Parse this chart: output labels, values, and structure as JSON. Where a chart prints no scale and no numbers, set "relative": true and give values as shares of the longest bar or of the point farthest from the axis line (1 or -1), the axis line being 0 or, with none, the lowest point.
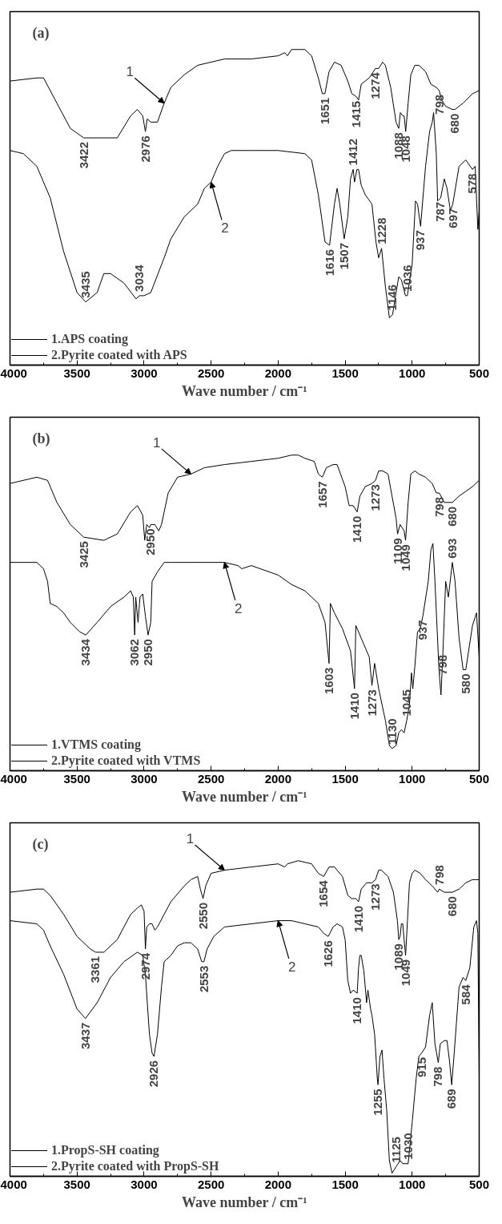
{
  "chart_data": [
    {
      "type": "line",
      "title": "(a)",
      "xlabel": "Wave number / cm⁻¹",
      "relative": true,
      "xlim": [
        4000,
        500
      ],
      "xticks": [
        4000,
        3500,
        3000,
        2500,
        2000,
        1500,
        1000,
        500
      ],
      "legend": "bottom left",
      "grid": false,
      "series": [
        {
          "name": "1.APS coating",
          "color": "#000000",
          "x": [
            4000,
            3800,
            3750,
            3650,
            3550,
            3450,
            3300,
            3200,
            3100,
            3050,
            3010,
            2990,
            2976,
            2950,
            2900,
            2850,
            2800,
            2700,
            2600,
            2400,
            2200,
            2000,
            1950,
            1930,
            1900,
            1800,
            1750,
            1700,
            1670,
            1651,
            1620,
            1580,
            1530,
            1480,
            1450,
            1415,
            1400,
            1380,
            1350,
            1320,
            1274,
            1250,
            1220,
            1200,
            1160,
            1120,
            1100,
            1088,
            1070,
            1060,
            1048,
            1030,
            1010,
            980,
            950,
            900,
            860,
            820,
            798,
            780,
            750,
            700,
            680,
            620,
            550,
            500
          ],
          "values": [
            0.9,
            0.91,
            0.91,
            0.83,
            0.75,
            0.72,
            0.72,
            0.72,
            0.79,
            0.81,
            0.79,
            0.74,
            0.78,
            0.77,
            0.77,
            0.83,
            0.88,
            0.92,
            0.95,
            0.97,
            0.97,
            0.98,
            0.99,
            0.98,
            1.0,
            1.0,
            0.98,
            0.91,
            0.86,
            0.86,
            0.93,
            0.96,
            0.95,
            0.9,
            0.86,
            0.85,
            0.84,
            0.89,
            0.9,
            0.91,
            0.94,
            0.94,
            0.96,
            0.95,
            0.88,
            0.77,
            0.75,
            0.8,
            0.79,
            0.79,
            0.74,
            0.83,
            0.92,
            0.95,
            0.95,
            0.93,
            0.89,
            0.88,
            0.87,
            0.84,
            0.82,
            0.81,
            0.81,
            0.83,
            0.86,
            0.87
          ]
        },
        {
          "name": "2.Pyrite coated with APS",
          "color": "#000000",
          "x": [
            4000,
            3900,
            3800,
            3700,
            3600,
            3500,
            3435,
            3350,
            3300,
            3250,
            3150,
            3060,
            3034,
            3000,
            2950,
            2850,
            2800,
            2700,
            2600,
            2550,
            2500,
            2450,
            2400,
            2350,
            2200,
            2000,
            1800,
            1750,
            1700,
            1650,
            1616,
            1580,
            1560,
            1540,
            1507,
            1480,
            1460,
            1440,
            1430,
            1412,
            1400,
            1380,
            1350,
            1300,
            1270,
            1250,
            1228,
            1200,
            1170,
            1146,
            1120,
            1100,
            1080,
            1050,
            1036,
            1000,
            975,
            960,
            937,
            900,
            870,
            850,
            840,
            820,
            810,
            787,
            760,
            740,
            715,
            697,
            650,
            600,
            550,
            530,
            510,
            500
          ],
          "values": [
            0.68,
            0.67,
            0.63,
            0.53,
            0.36,
            0.23,
            0.2,
            0.23,
            0.29,
            0.29,
            0.26,
            0.21,
            0.22,
            0.22,
            0.23,
            0.34,
            0.4,
            0.47,
            0.51,
            0.56,
            0.58,
            0.63,
            0.67,
            0.68,
            0.68,
            0.68,
            0.67,
            0.65,
            0.54,
            0.39,
            0.38,
            0.51,
            0.56,
            0.51,
            0.4,
            0.47,
            0.59,
            0.62,
            0.58,
            0.62,
            0.62,
            0.57,
            0.54,
            0.51,
            0.39,
            0.34,
            0.37,
            0.25,
            0.15,
            0.16,
            0.23,
            0.28,
            0.27,
            0.22,
            0.22,
            0.32,
            0.52,
            0.51,
            0.44,
            0.63,
            0.74,
            0.77,
            0.8,
            0.67,
            0.52,
            0.53,
            0.59,
            0.56,
            0.49,
            0.51,
            0.63,
            0.65,
            0.62,
            0.63,
            0.43,
            0.49
          ]
        }
      ],
      "annotations": [
        {
          "text": "1",
          "x": 2850,
          "y": 0.83
        },
        {
          "text": "2",
          "x": 2500,
          "y": 0.58
        },
        {
          "text": "3422",
          "x": 3450,
          "y": 0.72
        },
        {
          "text": "2976",
          "x": 2990,
          "y": 0.74
        },
        {
          "text": "1651",
          "x": 1651,
          "y": 0.86
        },
        {
          "text": "1415",
          "x": 1415,
          "y": 0.85
        },
        {
          "text": "1274",
          "x": 1274,
          "y": 0.94
        },
        {
          "text": "1088",
          "x": 1100,
          "y": 0.75
        },
        {
          "text": "1048",
          "x": 1048,
          "y": 0.74
        },
        {
          "text": "798",
          "x": 798,
          "y": 0.87
        },
        {
          "text": "680",
          "x": 680,
          "y": 0.81
        },
        {
          "text": "3435",
          "x": 3435,
          "y": 0.2
        },
        {
          "text": "3034",
          "x": 3034,
          "y": 0.22
        },
        {
          "text": "1616",
          "x": 1616,
          "y": 0.38
        },
        {
          "text": "1507",
          "x": 1507,
          "y": 0.4
        },
        {
          "text": "1412",
          "x": 1440,
          "y": 0.62
        },
        {
          "text": "1228",
          "x": 1228,
          "y": 0.37
        },
        {
          "text": "1146",
          "x": 1146,
          "y": 0.16
        },
        {
          "text": "1036",
          "x": 1036,
          "y": 0.22
        },
        {
          "text": "937",
          "x": 937,
          "y": 0.44
        },
        {
          "text": "787",
          "x": 787,
          "y": 0.53
        },
        {
          "text": "697",
          "x": 697,
          "y": 0.51
        },
        {
          "text": "578",
          "x": 550,
          "y": 0.62
        }
      ]
    },
    {
      "type": "line",
      "title": "(b)",
      "xlabel": "Wave number / cm⁻¹",
      "relative": true,
      "xlim": [
        4000,
        500
      ],
      "xticks": [
        4000,
        3500,
        3000,
        2500,
        2000,
        1500,
        1000,
        500
      ],
      "legend": "bottom left",
      "grid": false,
      "series": [
        {
          "name": "1.VTMS coating",
          "color": "#000000",
          "x": [
            4000,
            3800,
            3720,
            3650,
            3550,
            3450,
            3300,
            3200,
            3100,
            3050,
            3010,
            2995,
            2980,
            2960,
            2950,
            2920,
            2890,
            2870,
            2820,
            2750,
            2650,
            2550,
            2400,
            2200,
            2000,
            1900,
            1850,
            1800,
            1730,
            1700,
            1670,
            1640,
            1590,
            1560,
            1500,
            1470,
            1440,
            1410,
            1390,
            1350,
            1300,
            1273,
            1250,
            1220,
            1180,
            1150,
            1120,
            1109,
            1090,
            1075,
            1060,
            1049,
            1030,
            1010,
            980,
            950,
            900,
            850,
            820,
            798,
            760,
            700,
            650,
            550,
            500
          ],
          "values": [
            0.91,
            0.93,
            0.92,
            0.85,
            0.78,
            0.74,
            0.73,
            0.75,
            0.82,
            0.84,
            0.81,
            0.73,
            0.78,
            0.77,
            0.78,
            0.78,
            0.76,
            0.78,
            0.88,
            0.93,
            0.94,
            0.96,
            0.97,
            0.98,
            0.99,
            1.0,
            1.0,
            0.99,
            0.98,
            0.94,
            0.93,
            0.96,
            0.97,
            0.97,
            0.9,
            0.84,
            0.84,
            0.82,
            0.87,
            0.9,
            0.91,
            0.92,
            0.95,
            0.95,
            0.94,
            0.87,
            0.8,
            0.75,
            0.78,
            0.77,
            0.76,
            0.73,
            0.85,
            0.94,
            0.95,
            0.94,
            0.93,
            0.91,
            0.88,
            0.88,
            0.85,
            0.85,
            0.87,
            0.9,
            0.92
          ]
        },
        {
          "name": "2.Pyrite coated with VTMS",
          "color": "#000000",
          "x": [
            4000,
            3800,
            3750,
            3720,
            3700,
            3650,
            3600,
            3550,
            3480,
            3434,
            3350,
            3250,
            3150,
            3100,
            3080,
            3070,
            3062,
            3045,
            3030,
            3010,
            2990,
            2970,
            2950,
            2940,
            2900,
            2850,
            2800,
            2600,
            2400,
            2300,
            2270,
            2200,
            2000,
            1900,
            1800,
            1700,
            1650,
            1620,
            1610,
            1580,
            1520,
            1460,
            1430,
            1420,
            1380,
            1320,
            1300,
            1280,
            1250,
            1200,
            1170,
            1150,
            1120,
            1100,
            1080,
            1060,
            1040,
            1020,
            1005,
            995,
            980,
            960,
            940,
            920,
            880,
            860,
            845,
            830,
            800,
            785,
            770,
            750,
            730,
            700,
            680,
            650,
            620,
            600,
            550,
            520,
            500
          ],
          "values": [
            0.66,
            0.66,
            0.64,
            0.6,
            0.53,
            0.52,
            0.5,
            0.47,
            0.44,
            0.43,
            0.47,
            0.52,
            0.55,
            0.57,
            0.55,
            0.43,
            0.55,
            0.47,
            0.55,
            0.56,
            0.49,
            0.43,
            0.47,
            0.6,
            0.63,
            0.66,
            0.66,
            0.66,
            0.66,
            0.65,
            0.64,
            0.65,
            0.62,
            0.59,
            0.57,
            0.53,
            0.47,
            0.34,
            0.53,
            0.5,
            0.45,
            0.38,
            0.26,
            0.46,
            0.42,
            0.36,
            0.27,
            0.34,
            0.26,
            0.16,
            0.08,
            0.07,
            0.08,
            0.12,
            0.13,
            0.12,
            0.16,
            0.21,
            0.31,
            0.26,
            0.33,
            0.44,
            0.45,
            0.49,
            0.6,
            0.7,
            0.72,
            0.6,
            0.32,
            0.24,
            0.38,
            0.6,
            0.55,
            0.66,
            0.6,
            0.42,
            0.32,
            0.32,
            0.46,
            0.5,
            0.36
          ]
        }
      ],
      "annotations": [
        {
          "text": "1",
          "x": 2650,
          "y": 0.94
        },
        {
          "text": "2",
          "x": 2400,
          "y": 0.66
        },
        {
          "text": "3425",
          "x": 3450,
          "y": 0.74
        },
        {
          "text": "2950",
          "x": 2950,
          "y": 0.78
        },
        {
          "text": "1657",
          "x": 1670,
          "y": 0.93
        },
        {
          "text": "1410",
          "x": 1410,
          "y": 0.82
        },
        {
          "text": "1273",
          "x": 1273,
          "y": 0.92
        },
        {
          "text": "1109",
          "x": 1109,
          "y": 0.75
        },
        {
          "text": "1049",
          "x": 1049,
          "y": 0.73
        },
        {
          "text": "798",
          "x": 798,
          "y": 0.88
        },
        {
          "text": "680",
          "x": 700,
          "y": 0.85
        },
        {
          "text": "3434",
          "x": 3434,
          "y": 0.43
        },
        {
          "text": "3062",
          "x": 3070,
          "y": 0.43
        },
        {
          "text": "2950",
          "x": 2970,
          "y": 0.43
        },
        {
          "text": "1603",
          "x": 1620,
          "y": 0.34
        },
        {
          "text": "1410",
          "x": 1430,
          "y": 0.26
        },
        {
          "text": "1273",
          "x": 1300,
          "y": 0.27
        },
        {
          "text": "1130",
          "x": 1150,
          "y": 0.07
        },
        {
          "text": "1045",
          "x": 1040,
          "y": 0.16
        },
        {
          "text": "937",
          "x": 920,
          "y": 0.49
        },
        {
          "text": "798",
          "x": 770,
          "y": 0.38
        },
        {
          "text": "693",
          "x": 700,
          "y": 0.66
        },
        {
          "text": "580",
          "x": 600,
          "y": 0.32
        }
      ]
    },
    {
      "type": "line",
      "title": "(c)",
      "xlabel": "Wave number / cm⁻¹",
      "relative": true,
      "xlim": [
        4000,
        500
      ],
      "xticks": [
        4000,
        3500,
        3000,
        2500,
        2000,
        1500,
        1000,
        500
      ],
      "legend": "bottom left",
      "grid": false,
      "series": [
        {
          "name": "1.PropS-SH coating",
          "color": "#000000",
          "x": [
            4000,
            3800,
            3750,
            3700,
            3600,
            3500,
            3400,
            3361,
            3300,
            3200,
            3100,
            3050,
            3020,
            3000,
            2990,
            2980,
            2960,
            2940,
            2920,
            2900,
            2850,
            2800,
            2700,
            2650,
            2600,
            2580,
            2560,
            2540,
            2500,
            2400,
            2200,
            2000,
            1950,
            1930,
            1850,
            1750,
            1700,
            1660,
            1620,
            1580,
            1520,
            1480,
            1450,
            1420,
            1400,
            1380,
            1340,
            1300,
            1273,
            1250,
            1230,
            1180,
            1140,
            1110,
            1100,
            1090,
            1080,
            1070,
            1060,
            1049,
            1035,
            1020,
            1000,
            980,
            940,
            900,
            850,
            810,
            798,
            760,
            700,
            650,
            600,
            550,
            500
          ],
          "values": [
            0.9,
            0.91,
            0.91,
            0.89,
            0.83,
            0.76,
            0.72,
            0.71,
            0.71,
            0.75,
            0.83,
            0.85,
            0.86,
            0.84,
            0.72,
            0.79,
            0.8,
            0.8,
            0.78,
            0.79,
            0.83,
            0.87,
            0.92,
            0.94,
            0.95,
            0.91,
            0.88,
            0.92,
            0.96,
            0.97,
            0.98,
            0.99,
            0.98,
            0.99,
            1.0,
            0.99,
            0.96,
            0.95,
            0.98,
            0.98,
            0.95,
            0.89,
            0.88,
            0.88,
            0.87,
            0.91,
            0.93,
            0.93,
            0.94,
            0.97,
            0.97,
            0.95,
            0.9,
            0.81,
            0.75,
            0.76,
            0.8,
            0.8,
            0.75,
            0.7,
            0.81,
            0.93,
            0.96,
            0.97,
            0.96,
            0.94,
            0.92,
            0.9,
            0.91,
            0.9,
            0.9,
            0.91,
            0.93,
            0.94,
            0.94
          ]
        },
        {
          "name": "2.Pyrite coated with PropS-SH",
          "color": "#000000",
          "x": [
            4000,
            3800,
            3750,
            3700,
            3600,
            3500,
            3437,
            3350,
            3250,
            3150,
            3050,
            3010,
            2990,
            2960,
            2940,
            2926,
            2900,
            2870,
            2850,
            2800,
            2750,
            2700,
            2650,
            2600,
            2570,
            2553,
            2530,
            2480,
            2400,
            2200,
            2000,
            1900,
            1800,
            1700,
            1660,
            1626,
            1590,
            1560,
            1520,
            1500,
            1480,
            1460,
            1440,
            1410,
            1400,
            1390,
            1380,
            1360,
            1340,
            1330,
            1310,
            1300,
            1280,
            1260,
            1255,
            1240,
            1225,
            1210,
            1190,
            1170,
            1150,
            1120,
            1090,
            1070,
            1030,
            1000,
            970,
            950,
            930,
            900,
            870,
            850,
            830,
            805,
            790,
            760,
            740,
            720,
            705,
            690,
            650,
            620,
            600,
            570,
            540,
            520,
            510,
            500
          ],
          "values": [
            0.81,
            0.8,
            0.78,
            0.73,
            0.64,
            0.53,
            0.5,
            0.55,
            0.63,
            0.68,
            0.71,
            0.7,
            0.64,
            0.45,
            0.39,
            0.38,
            0.45,
            0.6,
            0.68,
            0.7,
            0.73,
            0.74,
            0.74,
            0.72,
            0.68,
            0.68,
            0.72,
            0.76,
            0.79,
            0.8,
            0.81,
            0.81,
            0.8,
            0.79,
            0.77,
            0.76,
            0.79,
            0.8,
            0.79,
            0.75,
            0.62,
            0.58,
            0.59,
            0.58,
            0.66,
            0.7,
            0.7,
            0.65,
            0.55,
            0.59,
            0.53,
            0.51,
            0.45,
            0.31,
            0.29,
            0.38,
            0.4,
            0.31,
            0.21,
            0.05,
            0.01,
            0.03,
            0.05,
            0.04,
            0.04,
            0.17,
            0.31,
            0.38,
            0.39,
            0.41,
            0.51,
            0.55,
            0.42,
            0.36,
            0.42,
            0.43,
            0.43,
            0.36,
            0.29,
            0.37,
            0.6,
            0.63,
            0.62,
            0.66,
            0.79,
            0.81,
            0.77,
            0.31
          ]
        }
      ],
      "annotations": [
        {
          "text": "1",
          "x": 2400,
          "y": 0.97
        },
        {
          "text": "2",
          "x": 2000,
          "y": 0.81
        },
        {
          "text": "3361",
          "x": 3361,
          "y": 0.71
        },
        {
          "text": "2974",
          "x": 2990,
          "y": 0.72
        },
        {
          "text": "2550",
          "x": 2560,
          "y": 0.88
        },
        {
          "text": "1654",
          "x": 1660,
          "y": 0.95
        },
        {
          "text": "1410",
          "x": 1400,
          "y": 0.87
        },
        {
          "text": "1273",
          "x": 1273,
          "y": 0.94
        },
        {
          "text": "1089",
          "x": 1100,
          "y": 0.75
        },
        {
          "text": "1049",
          "x": 1049,
          "y": 0.7
        },
        {
          "text": "798",
          "x": 798,
          "y": 0.91
        },
        {
          "text": "680",
          "x": 700,
          "y": 0.9
        },
        {
          "text": "3437",
          "x": 3437,
          "y": 0.5
        },
        {
          "text": "2926",
          "x": 2926,
          "y": 0.38
        },
        {
          "text": "2553",
          "x": 2553,
          "y": 0.68
        },
        {
          "text": "1626",
          "x": 1626,
          "y": 0.76
        },
        {
          "text": "1410",
          "x": 1410,
          "y": 0.58
        },
        {
          "text": "1255",
          "x": 1255,
          "y": 0.29
        },
        {
          "text": "1125",
          "x": 1120,
          "y": 0.03
        },
        {
          "text": "1030",
          "x": 1030,
          "y": 0.04
        },
        {
          "text": "915",
          "x": 930,
          "y": 0.39
        },
        {
          "text": "798",
          "x": 805,
          "y": 0.36
        },
        {
          "text": "689",
          "x": 705,
          "y": 0.29
        },
        {
          "text": "584",
          "x": 600,
          "y": 0.62
        }
      ]
    }
  ]
}
